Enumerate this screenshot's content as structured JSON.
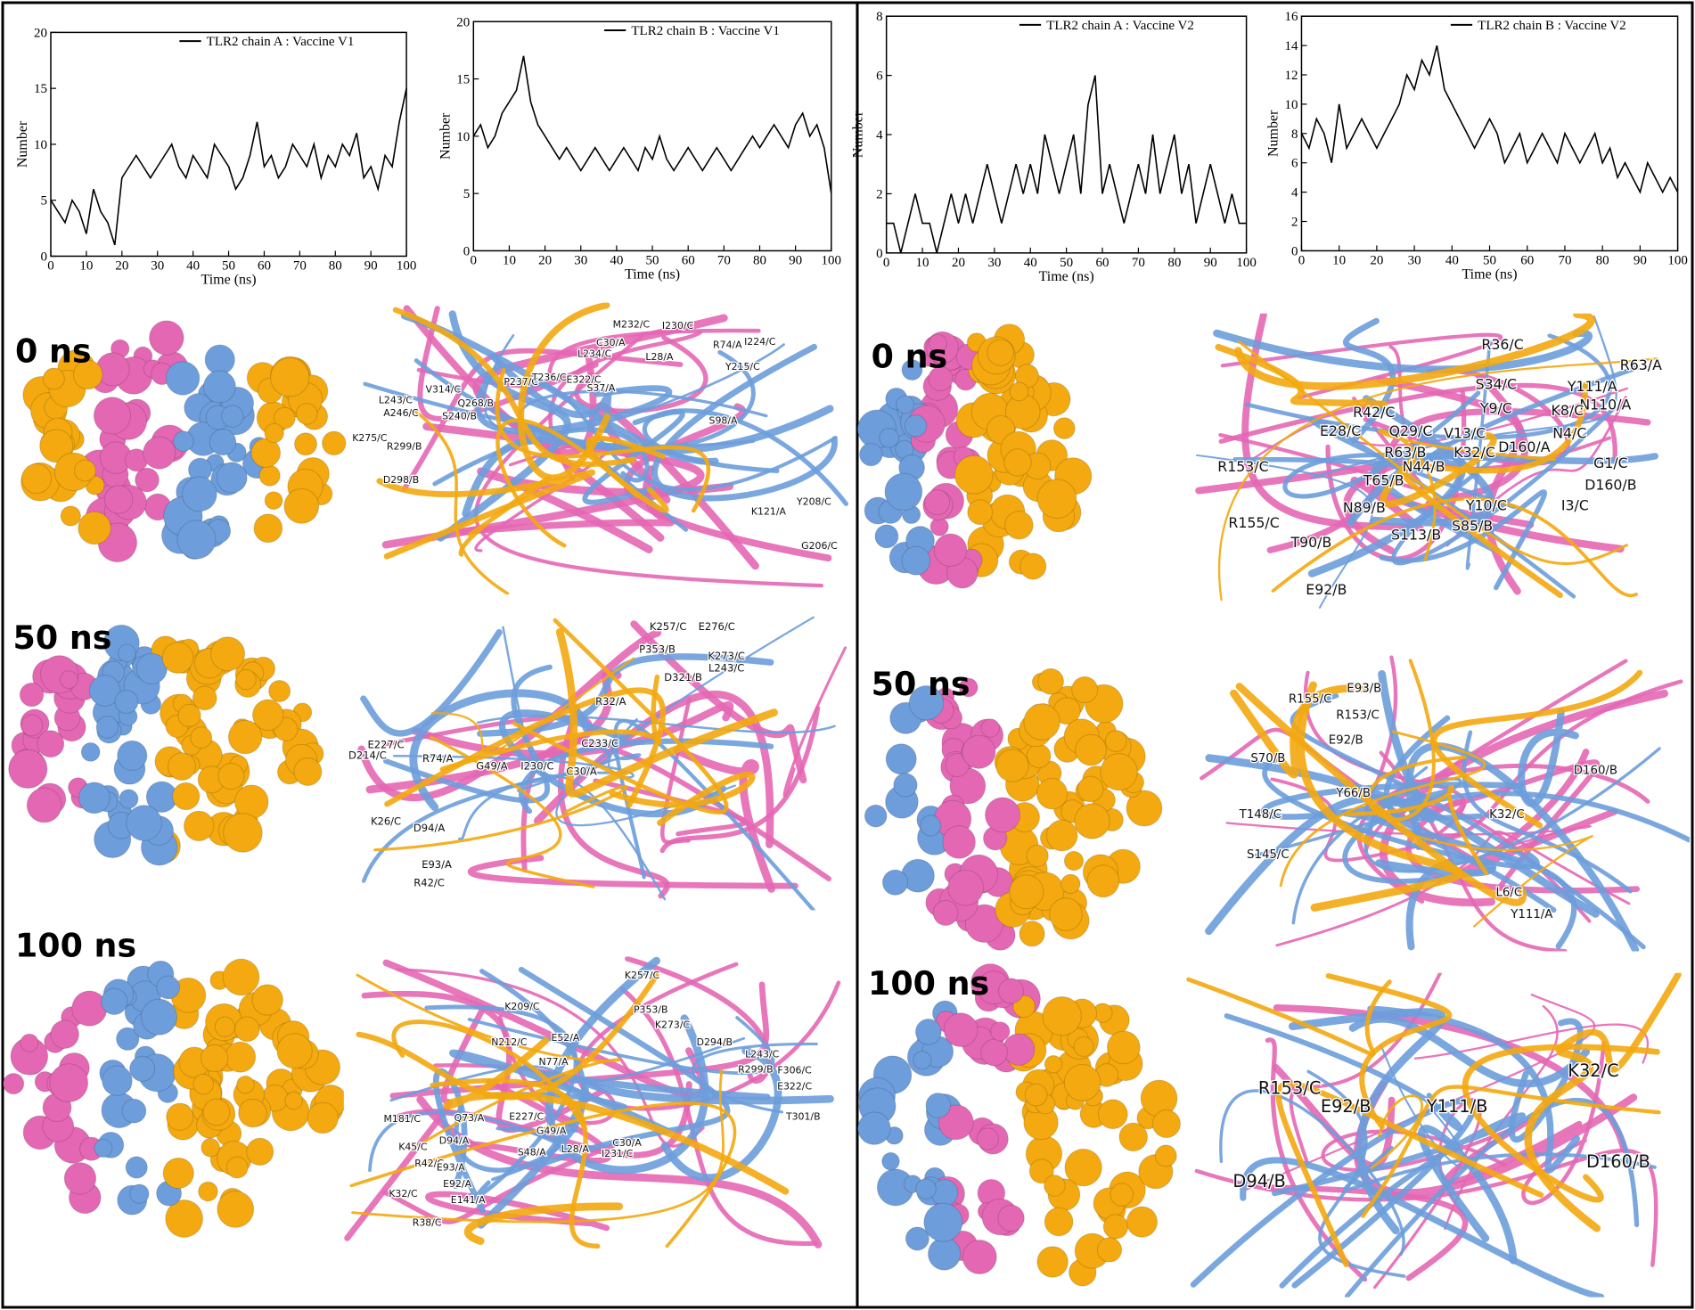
{
  "chart_data": [
    {
      "type": "line",
      "x_label": "Time (ns)",
      "y_label": "Number",
      "legend": "upper right",
      "x": [
        0,
        2,
        4,
        6,
        8,
        10,
        12,
        14,
        16,
        18,
        20,
        22,
        24,
        26,
        28,
        30,
        32,
        34,
        36,
        38,
        40,
        42,
        44,
        46,
        48,
        50,
        52,
        54,
        56,
        58,
        60,
        62,
        64,
        66,
        68,
        70,
        72,
        74,
        76,
        78,
        80,
        82,
        84,
        86,
        88,
        90,
        92,
        94,
        96,
        98,
        100
      ],
      "xlim": [
        0,
        100
      ],
      "xticks": [
        0,
        10,
        20,
        30,
        40,
        50,
        60,
        70,
        80,
        90,
        100
      ],
      "ylim": [
        0,
        20
      ],
      "yticks": [
        0,
        5,
        10,
        15,
        20
      ],
      "series": [
        {
          "name": "TLR2 chain A : Vaccine V1",
          "color": "#000000",
          "values": [
            5,
            4,
            3,
            5,
            4,
            2,
            6,
            4,
            3,
            1,
            7,
            8,
            9,
            8,
            7,
            8,
            9,
            10,
            8,
            7,
            9,
            8,
            7,
            10,
            9,
            8,
            6,
            7,
            9,
            12,
            8,
            9,
            7,
            8,
            10,
            9,
            8,
            10,
            7,
            9,
            8,
            10,
            9,
            11,
            7,
            8,
            6,
            9,
            8,
            12,
            15
          ]
        }
      ]
    },
    {
      "type": "line",
      "x_label": "Time (ns)",
      "y_label": "Number",
      "legend": "upper right",
      "x": [
        0,
        2,
        4,
        6,
        8,
        10,
        12,
        14,
        16,
        18,
        20,
        22,
        24,
        26,
        28,
        30,
        32,
        34,
        36,
        38,
        40,
        42,
        44,
        46,
        48,
        50,
        52,
        54,
        56,
        58,
        60,
        62,
        64,
        66,
        68,
        70,
        72,
        74,
        76,
        78,
        80,
        82,
        84,
        86,
        88,
        90,
        92,
        94,
        96,
        98,
        100
      ],
      "xlim": [
        0,
        100
      ],
      "xticks": [
        0,
        10,
        20,
        30,
        40,
        50,
        60,
        70,
        80,
        90,
        100
      ],
      "ylim": [
        0,
        20
      ],
      "yticks": [
        0,
        5,
        10,
        15,
        20
      ],
      "series": [
        {
          "name": "TLR2 chain B : Vaccine V1",
          "color": "#000000",
          "values": [
            10,
            11,
            9,
            10,
            12,
            13,
            14,
            17,
            13,
            11,
            10,
            9,
            8,
            9,
            8,
            7,
            8,
            9,
            8,
            7,
            8,
            9,
            8,
            7,
            9,
            8,
            10,
            8,
            7,
            8,
            9,
            8,
            7,
            8,
            9,
            8,
            7,
            8,
            9,
            10,
            9,
            10,
            11,
            10,
            9,
            11,
            12,
            10,
            11,
            9,
            5
          ]
        }
      ]
    },
    {
      "type": "line",
      "x_label": "Time (ns)",
      "y_label": "Number",
      "legend": "upper right",
      "x": [
        0,
        2,
        4,
        6,
        8,
        10,
        12,
        14,
        16,
        18,
        20,
        22,
        24,
        26,
        28,
        30,
        32,
        34,
        36,
        38,
        40,
        42,
        44,
        46,
        48,
        50,
        52,
        54,
        56,
        58,
        60,
        62,
        64,
        66,
        68,
        70,
        72,
        74,
        76,
        78,
        80,
        82,
        84,
        86,
        88,
        90,
        92,
        94,
        96,
        98,
        100
      ],
      "xlim": [
        0,
        100
      ],
      "xticks": [
        0,
        10,
        20,
        30,
        40,
        50,
        60,
        70,
        80,
        90,
        100
      ],
      "ylim": [
        0,
        8
      ],
      "yticks": [
        0,
        2,
        4,
        6,
        8
      ],
      "series": [
        {
          "name": "TLR2 chain A : Vaccine V2",
          "color": "#000000",
          "values": [
            1,
            1,
            0,
            1,
            2,
            1,
            1,
            0,
            1,
            2,
            1,
            2,
            1,
            2,
            3,
            2,
            1,
            2,
            3,
            2,
            3,
            2,
            4,
            3,
            2,
            3,
            4,
            2,
            5,
            6,
            2,
            3,
            2,
            1,
            2,
            3,
            2,
            4,
            2,
            3,
            4,
            2,
            3,
            1,
            2,
            3,
            2,
            1,
            2,
            1,
            1
          ]
        }
      ]
    },
    {
      "type": "line",
      "x_label": "Time (ns)",
      "y_label": "Number",
      "legend": "upper right",
      "x": [
        0,
        2,
        4,
        6,
        8,
        10,
        12,
        14,
        16,
        18,
        20,
        22,
        24,
        26,
        28,
        30,
        32,
        34,
        36,
        38,
        40,
        42,
        44,
        46,
        48,
        50,
        52,
        54,
        56,
        58,
        60,
        62,
        64,
        66,
        68,
        70,
        72,
        74,
        76,
        78,
        80,
        82,
        84,
        86,
        88,
        90,
        92,
        94,
        96,
        98,
        100
      ],
      "xlim": [
        0,
        100
      ],
      "xticks": [
        0,
        10,
        20,
        30,
        40,
        50,
        60,
        70,
        80,
        90,
        100
      ],
      "ylim": [
        0,
        16
      ],
      "yticks": [
        0,
        2,
        4,
        6,
        8,
        10,
        12,
        14,
        16
      ],
      "series": [
        {
          "name": "TLR2 chain B : Vaccine V2",
          "color": "#000000",
          "values": [
            8,
            7,
            9,
            8,
            6,
            10,
            7,
            8,
            9,
            8,
            7,
            8,
            9,
            10,
            12,
            11,
            13,
            12,
            14,
            11,
            10,
            9,
            8,
            7,
            8,
            9,
            8,
            6,
            7,
            8,
            6,
            7,
            8,
            7,
            6,
            8,
            7,
            6,
            7,
            8,
            6,
            7,
            5,
            6,
            5,
            4,
            6,
            5,
            4,
            5,
            4
          ]
        }
      ]
    }
  ],
  "panels": [
    {
      "time_label": "0 ns",
      "residues": [
        "M232/C",
        "I230/C",
        "C30/A",
        "L234/C",
        "L28/A",
        "R74/A",
        "I224/C",
        "P237/C",
        "T236/C",
        "E322/C",
        "S37/A",
        "Y215/C",
        "V314/C",
        "L243/C",
        "A246/C",
        "Q268/B",
        "S240/B",
        "K275/C",
        "R299/B",
        "D298/B",
        "S98/A",
        "K121/A",
        "Y208/C",
        "G206/C"
      ]
    },
    {
      "time_label": "50 ns",
      "residues": [
        "K257/C",
        "E276/C",
        "P353/B",
        "K273/C",
        "L243/C",
        "D321/B",
        "R32/A",
        "C233/C",
        "E227/C",
        "D214/C",
        "R74/A",
        "G49/A",
        "I230/C",
        "C30/A",
        "K26/C",
        "D94/A",
        "E93/A",
        "R42/C"
      ]
    },
    {
      "time_label": "100 ns",
      "residues": [
        "K257/C",
        "P353/B",
        "K209/C",
        "K273/C",
        "D294/B",
        "N212/C",
        "E52/A",
        "L243/C",
        "R299/B",
        "F306/C",
        "N77/A",
        "E322/C",
        "M181/C",
        "Q73/A",
        "E227/C",
        "T301/B",
        "G49/A",
        "D94/A",
        "K45/C",
        "L28/A",
        "C30/A",
        "I231/C",
        "R42/C",
        "S48/A",
        "E93/A",
        "E92/A",
        "K32/C",
        "E141/A",
        "R38/C"
      ]
    },
    {
      "time_label": "0 ns",
      "residues": [
        "R36/C",
        "R63/A",
        "S34/C",
        "Y111/A",
        "N110/A",
        "Y9/C",
        "K8/C",
        "R42/C",
        "E28/C",
        "Q29/C",
        "V13/C",
        "K32/C",
        "N4/C",
        "D160/A",
        "R63/B",
        "N44/B",
        "R153/C",
        "G1/C",
        "D160/B",
        "T65/B",
        "N89/B",
        "Y10/C",
        "I3/C",
        "R155/C",
        "S113/B",
        "S85/B",
        "T90/B",
        "E92/B"
      ]
    },
    {
      "time_label": "50 ns",
      "residues": [
        "E93/B",
        "R155/C",
        "R153/C",
        "E92/B",
        "S70/B",
        "D160/B",
        "Y66/B",
        "K32/C",
        "T148/C",
        "S145/C",
        "L6/C",
        "Y111/A"
      ]
    },
    {
      "time_label": "100 ns",
      "residues": [
        "R153/C",
        "K32/C",
        "E92/B",
        "Y111/B",
        "D94/B",
        "D160/B"
      ]
    }
  ]
}
